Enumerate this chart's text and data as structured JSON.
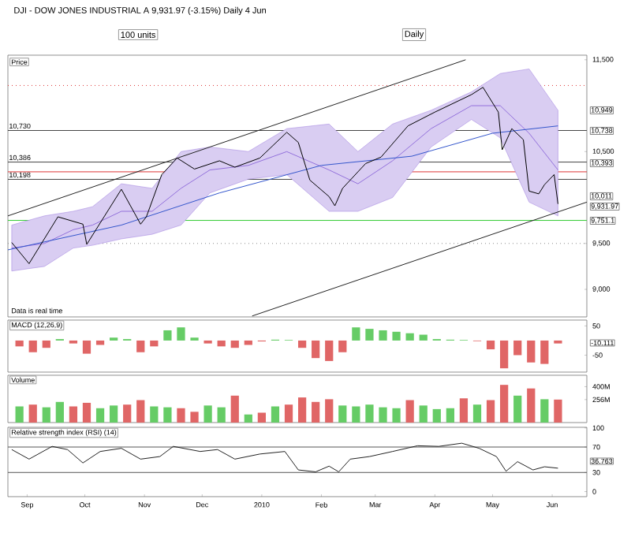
{
  "chart_data": [
    {
      "type": "line",
      "title": "Price",
      "xlim": [
        "2009-08-22",
        "2010-06-19"
      ],
      "ylim": [
        8700,
        11550
      ],
      "tick_labels": "y",
      "yticks": [
        {
          "value": 9000,
          "label": "9,000"
        },
        {
          "value": 9500,
          "label": "9,500"
        },
        {
          "value": 10500,
          "label": "10,500"
        },
        {
          "value": 11500,
          "label": "11,500"
        }
      ],
      "series": [
        {
          "color": "#9370db",
          "x": [
            "2009-08-24",
            "2009-09-10",
            "2009-09-25",
            "2009-10-05",
            "2009-10-20",
            "2009-11-05",
            "2009-11-20",
            "2009-12-05",
            "2009-12-25",
            "2010-01-14",
            "2010-02-05",
            "2010-02-20",
            "2010-03-10",
            "2010-03-30",
            "2010-04-20",
            "2010-05-05",
            "2010-05-20",
            "2010-06-04"
          ],
          "values": [
            9450,
            9500,
            9650,
            9700,
            9850,
            9850,
            10100,
            10300,
            10350,
            10500,
            10300,
            10150,
            10400,
            10750,
            11000,
            11000,
            10700,
            10300
          ],
          "lower": [
            9200,
            9250,
            9450,
            9480,
            9550,
            9600,
            9700,
            10050,
            10200,
            10250,
            9850,
            9850,
            10000,
            10550,
            10850,
            10650,
            9950,
            9800
          ],
          "upper": [
            9700,
            9800,
            9850,
            9900,
            10150,
            10100,
            10500,
            10550,
            10500,
            10750,
            10800,
            10500,
            10800,
            10950,
            11150,
            11350,
            11400,
            10950
          ]
        },
        {
          "color": "#3355cc",
          "x": [
            "2009-08-22",
            "2009-10-20",
            "2009-12-10",
            "2010-02-01",
            "2010-03-20",
            "2010-05-01",
            "2010-06-04"
          ],
          "values": [
            9430,
            9700,
            10050,
            10350,
            10450,
            10700,
            10780
          ]
        },
        {
          "color": "#222222",
          "x": [
            "2009-08-22",
            "2010-04-17"
          ],
          "values": [
            9800,
            11500
          ]
        },
        {
          "color": "#222222",
          "x": [
            "2009-12-27",
            "2010-06-19"
          ],
          "values": [
            8710,
            9950
          ]
        },
        {
          "color": "#000000",
          "x": [
            "2009-08-24",
            "2009-09-02",
            "2009-09-17",
            "2009-09-30",
            "2009-10-02",
            "2009-10-20",
            "2009-10-30",
            "2009-11-02",
            "2009-11-10",
            "2009-11-18",
            "2009-11-27",
            "2009-12-10",
            "2009-12-18",
            "2009-12-31",
            "2010-01-14",
            "2010-01-20",
            "2010-01-26",
            "2010-02-05",
            "2010-02-08",
            "2010-02-12",
            "2010-02-24",
            "2010-03-04",
            "2010-03-18",
            "2010-04-01",
            "2010-04-20",
            "2010-04-26",
            "2010-05-04",
            "2010-05-06",
            "2010-05-11",
            "2010-05-17",
            "2010-05-20",
            "2010-05-25",
            "2010-05-28",
            "2010-06-02",
            "2010-06-04"
          ],
          "values": [
            9510,
            9280,
            9790,
            9710,
            9490,
            10090,
            9710,
            9790,
            10250,
            10430,
            10310,
            10400,
            10330,
            10430,
            10710,
            10600,
            10190,
            10010,
            9910,
            10100,
            10370,
            10440,
            10780,
            10930,
            11120,
            11200,
            10930,
            10520,
            10750,
            10630,
            10070,
            10040,
            10140,
            10250,
            9930
          ]
        }
      ],
      "ref_lines": [
        {
          "axis": "y",
          "value": 10730,
          "label": "10,730",
          "color": "#444444"
        },
        {
          "axis": "y",
          "value": 10386,
          "label": "10,386",
          "color": "#444444"
        },
        {
          "axis": "y",
          "value": 10198,
          "label": "10,198",
          "color": "#444444"
        },
        {
          "axis": "y",
          "value": 10280,
          "color": "#dd3333"
        },
        {
          "axis": "y",
          "value": 11220,
          "color": "#dd3333",
          "line_style": "dotted"
        },
        {
          "axis": "y",
          "value": 9751.1,
          "color": "#33cc33"
        },
        {
          "axis": "y",
          "value": 9500,
          "color": "#888888",
          "line_style": "dotted"
        }
      ],
      "annotations": [
        "DJI - DOW JONES INDUSTRIAL A   9,931.97 (-3.15%)   Daily  4 Jun",
        "100 units",
        "Daily",
        "Data is real time",
        "10,949",
        "10,738",
        "10,393",
        "10,011",
        "9,931.97",
        "9,751.1"
      ]
    },
    {
      "type": "bar",
      "title": "MACD (12,26,9)",
      "xlim": [
        "2009-08-22",
        "2010-06-19"
      ],
      "ylim": [
        -108,
        70
      ],
      "yticks": [
        50,
        -50
      ],
      "tick_labels": "y",
      "x": [
        "2009-08-28",
        "2009-09-04",
        "2009-09-11",
        "2009-09-18",
        "2009-09-25",
        "2009-10-02",
        "2009-10-09",
        "2009-10-16",
        "2009-10-23",
        "2009-10-30",
        "2009-11-06",
        "2009-11-13",
        "2009-11-20",
        "2009-11-27",
        "2009-12-04",
        "2009-12-11",
        "2009-12-18",
        "2009-12-25",
        "2010-01-01",
        "2010-01-08",
        "2010-01-15",
        "2010-01-22",
        "2010-01-29",
        "2010-02-05",
        "2010-02-12",
        "2010-02-19",
        "2010-02-26",
        "2010-03-05",
        "2010-03-12",
        "2010-03-19",
        "2010-03-26",
        "2010-04-02",
        "2010-04-09",
        "2010-04-16",
        "2010-04-23",
        "2010-04-30",
        "2010-05-07",
        "2010-05-14",
        "2010-05-21",
        "2010-05-28",
        "2010-06-04"
      ],
      "values": [
        -20,
        -40,
        -25,
        5,
        -10,
        -45,
        -15,
        10,
        5,
        -40,
        -20,
        35,
        45,
        10,
        -10,
        -20,
        -25,
        -15,
        -3,
        3,
        2,
        -25,
        -60,
        -70,
        -40,
        45,
        40,
        35,
        30,
        25,
        20,
        5,
        3,
        2,
        -2,
        -30,
        -95,
        -50,
        -75,
        -80,
        -10
      ],
      "colors": [
        "#e06666",
        "#e06666",
        "#e06666",
        "#66cc66",
        "#e06666",
        "#e06666",
        "#e06666",
        "#66cc66",
        "#66cc66",
        "#e06666",
        "#e06666",
        "#66cc66",
        "#66cc66",
        "#66cc66",
        "#e06666",
        "#e06666",
        "#e06666",
        "#e06666",
        "#e06666",
        "#66cc66",
        "#66cc66",
        "#e06666",
        "#e06666",
        "#e06666",
        "#e06666",
        "#66cc66",
        "#66cc66",
        "#66cc66",
        "#66cc66",
        "#66cc66",
        "#66cc66",
        "#66cc66",
        "#66cc66",
        "#66cc66",
        "#e06666",
        "#e06666",
        "#e06666",
        "#e06666",
        "#e06666",
        "#e06666",
        "#e06666"
      ],
      "annotations": [
        "-10.111"
      ]
    },
    {
      "type": "bar",
      "title": "Volume",
      "xlim": [
        "2009-08-22",
        "2010-06-19"
      ],
      "ylim": [
        0,
        527
      ],
      "yticks": [
        {
          "value": 256,
          "label": "256M"
        },
        {
          "value": 400,
          "label": "400M"
        }
      ],
      "tick_labels": "y",
      "x": [
        "2009-08-28",
        "2009-09-04",
        "2009-09-11",
        "2009-09-18",
        "2009-09-25",
        "2009-10-02",
        "2009-10-09",
        "2009-10-16",
        "2009-10-23",
        "2009-10-30",
        "2009-11-06",
        "2009-11-13",
        "2009-11-20",
        "2009-11-27",
        "2009-12-04",
        "2009-12-11",
        "2009-12-18",
        "2009-12-25",
        "2010-01-01",
        "2010-01-08",
        "2010-01-15",
        "2010-01-22",
        "2010-01-29",
        "2010-02-05",
        "2010-02-12",
        "2010-02-19",
        "2010-02-26",
        "2010-03-05",
        "2010-03-12",
        "2010-03-19",
        "2010-03-26",
        "2010-04-02",
        "2010-04-09",
        "2010-04-16",
        "2010-04-23",
        "2010-04-30",
        "2010-05-07",
        "2010-05-14",
        "2010-05-21",
        "2010-05-28",
        "2010-06-04"
      ],
      "values": [
        180,
        200,
        170,
        230,
        180,
        220,
        160,
        190,
        200,
        250,
        180,
        170,
        160,
        120,
        190,
        170,
        300,
        90,
        110,
        180,
        200,
        280,
        230,
        260,
        190,
        180,
        200,
        170,
        160,
        250,
        190,
        150,
        160,
        270,
        200,
        250,
        420,
        300,
        380,
        260,
        256
      ],
      "colors": [
        "#66cc66",
        "#e06666",
        "#66cc66",
        "#66cc66",
        "#e06666",
        "#e06666",
        "#66cc66",
        "#66cc66",
        "#e06666",
        "#e06666",
        "#66cc66",
        "#66cc66",
        "#e06666",
        "#e06666",
        "#66cc66",
        "#66cc66",
        "#e06666",
        "#66cc66",
        "#e06666",
        "#66cc66",
        "#e06666",
        "#e06666",
        "#e06666",
        "#e06666",
        "#66cc66",
        "#66cc66",
        "#66cc66",
        "#66cc66",
        "#66cc66",
        "#e06666",
        "#66cc66",
        "#66cc66",
        "#66cc66",
        "#e06666",
        "#66cc66",
        "#e06666",
        "#e06666",
        "#66cc66",
        "#e06666",
        "#66cc66",
        "#e06666"
      ]
    },
    {
      "type": "line",
      "title": "Relative strength index (RSI) (14)",
      "xlim": [
        "2009-08-22",
        "2010-06-19"
      ],
      "ylim": [
        -8,
        101
      ],
      "yticks": [
        0,
        30,
        70,
        100
      ],
      "xticks": [
        {
          "value": "2009-09-01",
          "label": "Sep"
        },
        {
          "value": "2009-10-01",
          "label": "Oct"
        },
        {
          "value": "2009-11-01",
          "label": "Nov"
        },
        {
          "value": "2009-12-01",
          "label": "Dec"
        },
        {
          "value": "2010-01-01",
          "label": "2010"
        },
        {
          "value": "2010-02-01",
          "label": "Feb"
        },
        {
          "value": "2010-03-01",
          "label": "Mar"
        },
        {
          "value": "2010-04-01",
          "label": "Apr"
        },
        {
          "value": "2010-05-01",
          "label": "May"
        },
        {
          "value": "2010-06-01",
          "label": "Jun"
        }
      ],
      "series": [
        {
          "color": "#222222",
          "x": [
            "2009-08-24",
            "2009-09-02",
            "2009-09-14",
            "2009-09-22",
            "2009-09-30",
            "2009-10-09",
            "2009-10-20",
            "2009-10-30",
            "2009-11-09",
            "2009-11-16",
            "2009-11-30",
            "2009-12-09",
            "2009-12-18",
            "2009-12-31",
            "2010-01-13",
            "2010-01-20",
            "2010-01-29",
            "2010-02-05",
            "2010-02-10",
            "2010-02-16",
            "2010-02-26",
            "2010-03-10",
            "2010-03-23",
            "2010-04-03",
            "2010-04-15",
            "2010-04-24",
            "2010-05-03",
            "2010-05-08",
            "2010-05-14",
            "2010-05-22",
            "2010-05-28",
            "2010-06-04"
          ],
          "values": [
            66,
            51,
            71,
            66,
            45,
            63,
            68,
            51,
            55,
            71,
            63,
            66,
            51,
            59,
            63,
            34,
            31,
            40,
            31,
            51,
            55,
            63,
            72,
            71,
            76,
            68,
            55,
            32,
            47,
            34,
            39,
            36.763
          ]
        }
      ],
      "ref_lines": [
        {
          "axis": "y",
          "value": 70,
          "color": "#555555"
        },
        {
          "axis": "y",
          "value": 30,
          "color": "#555555"
        }
      ],
      "annotations": [
        "36.763"
      ]
    }
  ]
}
